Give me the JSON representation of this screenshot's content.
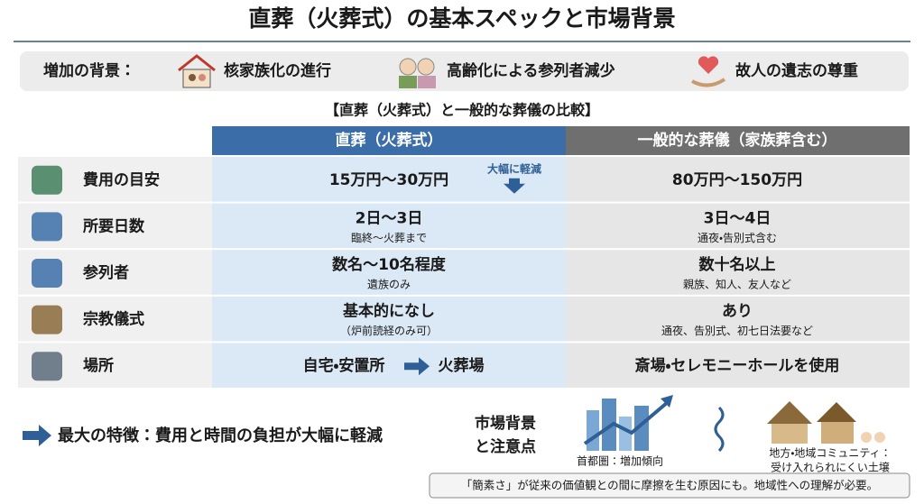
{
  "header": {
    "title": "直葬（火葬式）の基本スペックと市場背景"
  },
  "background": {
    "label": "増加の背景：",
    "items": [
      "核家族化の進行",
      "高齢化による参列者減少",
      "故人の遺志の尊重"
    ]
  },
  "table": {
    "title": "【直葬（火葬式）と一般的な葬儀の比較】",
    "columns": [
      "直葬（火葬式）",
      "一般的な葬儀（家族葬含む）"
    ],
    "rows": [
      {
        "label": "費用の目安",
        "direct": {
          "main": "15万円〜30万円",
          "note": "大幅に軽減"
        },
        "general": {
          "main": "80万円〜150万円"
        }
      },
      {
        "label": "所要日数",
        "direct": {
          "main": "2日〜3日",
          "sub": "臨終〜火葬まで"
        },
        "general": {
          "main": "3日〜4日",
          "sub": "通夜・告別式含む"
        }
      },
      {
        "label": "参列者",
        "direct": {
          "main": "数名〜10名程度",
          "sub": "遺族のみ"
        },
        "general": {
          "main": "数十名以上",
          "sub": "親族、知人、友人など"
        }
      },
      {
        "label": "宗教儀式",
        "direct": {
          "main": "基本的になし",
          "sub": "（炉前読経のみ可）"
        },
        "general": {
          "main": "あり",
          "sub": "通夜、告別式、初七日法要など"
        }
      },
      {
        "label": "場所",
        "direct": {
          "from": "自宅・安置所",
          "to": "火葬場"
        },
        "general": {
          "main": "斎場・セレモニーホールを使用"
        }
      }
    ]
  },
  "footer": {
    "feature": "最大の特徴：費用と時間の負担が大幅に軽減",
    "market": {
      "title": [
        "市場背景",
        "と注意点"
      ],
      "urban": "首都圏：増加傾向",
      "rural": [
        "地方・地域コミュニティ：",
        "受け入れられにくい土壌"
      ],
      "note": "「簡素さ」が従来の価値観との間に摩擦を生む原因にも。地域性への理解が必要。"
    }
  }
}
